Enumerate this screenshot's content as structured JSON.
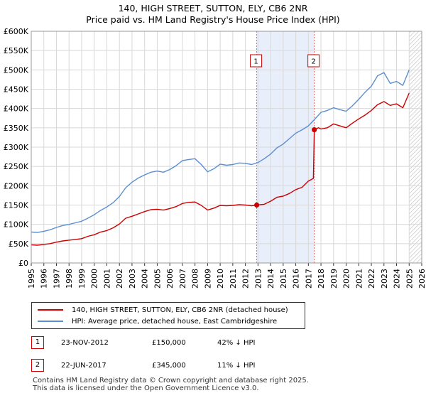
{
  "title_line1": "140, HIGH STREET, SUTTON, ELY, CB6 2NR",
  "title_line2": "Price paid vs. HM Land Registry's House Price Index (HPI)",
  "chart_data": {
    "type": "line",
    "title": "140, HIGH STREET, SUTTON, ELY, CB6 2NR — Price paid vs. HM Land Registry's House Price Index (HPI)",
    "xlabel": "",
    "ylabel": "",
    "xlim": [
      1995,
      2026
    ],
    "ylim": [
      0,
      600000
    ],
    "grid": true,
    "y_ticks": [
      0,
      50000,
      100000,
      150000,
      200000,
      250000,
      300000,
      350000,
      400000,
      450000,
      500000,
      550000,
      600000
    ],
    "y_tick_labels": [
      "£0",
      "£50K",
      "£100K",
      "£150K",
      "£200K",
      "£250K",
      "£300K",
      "£350K",
      "£400K",
      "£450K",
      "£500K",
      "£550K",
      "£600K"
    ],
    "x_ticks": [
      1995,
      1996,
      1997,
      1998,
      1999,
      2000,
      2001,
      2002,
      2003,
      2004,
      2005,
      2006,
      2007,
      2008,
      2009,
      2010,
      2011,
      2012,
      2013,
      2014,
      2015,
      2016,
      2017,
      2018,
      2019,
      2020,
      2021,
      2022,
      2023,
      2024,
      2025,
      2026
    ],
    "x_tick_labels": [
      "1995",
      "1996",
      "1997",
      "1998",
      "1999",
      "2000",
      "2001",
      "2002",
      "2003",
      "2004",
      "2005",
      "2006",
      "2007",
      "2008",
      "2009",
      "2010",
      "2011",
      "2012",
      "2013",
      "2014",
      "2015",
      "2016",
      "2017",
      "2018",
      "2019",
      "2020",
      "2021",
      "2022",
      "2023",
      "2024",
      "2025",
      "2026"
    ],
    "shaded_region": {
      "from": 2012.9,
      "to": 2017.47,
      "color": "#e8eefa"
    },
    "hatched_region": {
      "from": 2025.0,
      "to": 2026.0
    },
    "series": [
      {
        "name": "140, HIGH STREET, SUTTON, ELY, CB6 2NR (detached house)",
        "color": "#cc0000",
        "x": [
          1995.0,
          1995.5,
          1996.0,
          1996.5,
          1997.0,
          1997.5,
          1998.0,
          1998.5,
          1999.0,
          1999.5,
          2000.0,
          2000.5,
          2001.0,
          2001.5,
          2002.0,
          2002.5,
          2003.0,
          2003.5,
          2004.0,
          2004.5,
          2005.0,
          2005.5,
          2006.0,
          2006.5,
          2007.0,
          2007.5,
          2008.0,
          2008.5,
          2009.0,
          2009.5,
          2010.0,
          2010.5,
          2011.0,
          2011.5,
          2012.0,
          2012.5,
          2012.9,
          2013.5,
          2014.0,
          2014.5,
          2015.0,
          2015.5,
          2016.0,
          2016.5,
          2017.0,
          2017.4,
          2017.47,
          2017.8,
          2018.0,
          2018.5,
          2019.0,
          2019.5,
          2020.0,
          2020.5,
          2021.0,
          2021.5,
          2022.0,
          2022.5,
          2023.0,
          2023.5,
          2024.0,
          2024.5,
          2025.0
        ],
        "values": [
          47000,
          46000,
          48000,
          50000,
          54000,
          57000,
          59000,
          61000,
          63000,
          69000,
          73000,
          80000,
          84000,
          91000,
          101000,
          116000,
          121000,
          127000,
          133000,
          138000,
          139000,
          137000,
          141000,
          146000,
          154000,
          157000,
          158000,
          149000,
          137000,
          142000,
          149000,
          148000,
          149000,
          151000,
          150000,
          148000,
          150000,
          152000,
          160000,
          170000,
          173000,
          180000,
          190000,
          196000,
          212000,
          219000,
          345000,
          350000,
          347000,
          350000,
          360000,
          355000,
          350000,
          362000,
          373000,
          383000,
          395000,
          410000,
          418000,
          408000,
          412000,
          402000,
          440000
        ]
      },
      {
        "name": "HPI: Average price, detached house, East Cambridgeshire",
        "color": "#5b8fd0",
        "x": [
          1995.0,
          1995.5,
          1996.0,
          1996.5,
          1997.0,
          1997.5,
          1998.0,
          1998.5,
          1999.0,
          1999.5,
          2000.0,
          2000.5,
          2001.0,
          2001.5,
          2002.0,
          2002.5,
          2003.0,
          2003.5,
          2004.0,
          2004.5,
          2005.0,
          2005.5,
          2006.0,
          2006.5,
          2007.0,
          2007.5,
          2008.0,
          2008.5,
          2009.0,
          2009.5,
          2010.0,
          2010.5,
          2011.0,
          2011.5,
          2012.0,
          2012.5,
          2013.0,
          2013.5,
          2014.0,
          2014.5,
          2015.0,
          2015.5,
          2016.0,
          2016.5,
          2017.0,
          2017.5,
          2018.0,
          2018.5,
          2019.0,
          2019.5,
          2020.0,
          2020.5,
          2021.0,
          2021.5,
          2022.0,
          2022.5,
          2023.0,
          2023.5,
          2024.0,
          2024.5,
          2025.0
        ],
        "values": [
          80000,
          79000,
          82000,
          86000,
          92000,
          97000,
          100000,
          104000,
          108000,
          116000,
          125000,
          136000,
          145000,
          156000,
          172000,
          195000,
          209000,
          220000,
          228000,
          235000,
          238000,
          235000,
          242000,
          252000,
          265000,
          268000,
          270000,
          255000,
          236000,
          244000,
          256000,
          253000,
          255000,
          259000,
          258000,
          255000,
          260000,
          270000,
          282000,
          298000,
          308000,
          322000,
          336000,
          345000,
          355000,
          372000,
          390000,
          395000,
          402000,
          397000,
          393000,
          407000,
          424000,
          442000,
          458000,
          485000,
          493000,
          465000,
          470000,
          460000,
          500000
        ]
      }
    ],
    "annotations": [
      {
        "label": "1",
        "x": 2012.9,
        "y": 150000
      },
      {
        "label": "2",
        "x": 2017.47,
        "y": 345000
      }
    ]
  },
  "legend": {
    "items": [
      {
        "label": "140, HIGH STREET, SUTTON, ELY, CB6 2NR (detached house)",
        "color": "#cc0000"
      },
      {
        "label": "HPI: Average price, detached house, East Cambridgeshire",
        "color": "#5b8fd0"
      }
    ]
  },
  "transactions": [
    {
      "num": "1",
      "date": "23-NOV-2012",
      "price": "£150,000",
      "hpi": "42% ↓ HPI"
    },
    {
      "num": "2",
      "date": "22-JUN-2017",
      "price": "£345,000",
      "hpi": "11% ↓ HPI"
    }
  ],
  "footer": {
    "line1": "Contains HM Land Registry data © Crown copyright and database right 2025.",
    "line2": "This data is licensed under the Open Government Licence v3.0."
  }
}
